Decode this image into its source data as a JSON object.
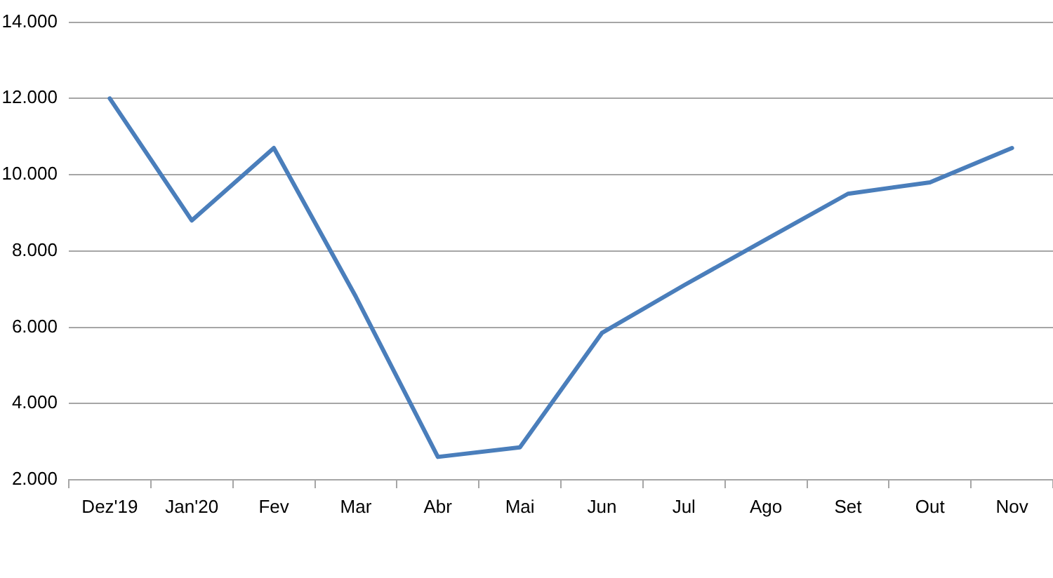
{
  "chart_data": {
    "type": "line",
    "categories": [
      "Dez'19",
      "Jan'20",
      "Fev",
      "Mar",
      "Abr",
      "Mai",
      "Jun",
      "Jul",
      "Ago",
      "Set",
      "Out",
      "Nov"
    ],
    "series": [
      {
        "color": "#4a7ebb",
        "values": [
          12000,
          8800,
          10700,
          6800,
          2600,
          2850,
          5850,
          7100,
          8300,
          9500,
          9800,
          10700
        ]
      }
    ],
    "ylim": [
      2000,
      14000
    ],
    "yticks": [
      {
        "value": 2000,
        "label": "2.000"
      },
      {
        "value": 4000,
        "label": "4.000"
      },
      {
        "value": 6000,
        "label": "6.000"
      },
      {
        "value": 8000,
        "label": "8.000"
      },
      {
        "value": 10000,
        "label": "10.000"
      },
      {
        "value": 12000,
        "label": "12.000"
      },
      {
        "value": 14000,
        "label": "14.000"
      }
    ],
    "grid": "y",
    "line_style": "solid"
  }
}
